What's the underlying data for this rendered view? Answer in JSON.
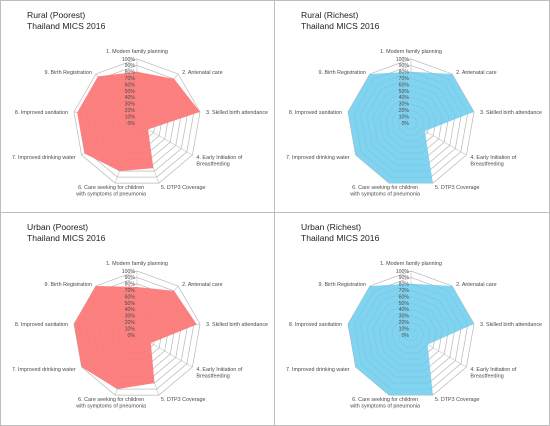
{
  "chart_data": [
    {
      "type": "radar",
      "title": "Rural (Poorest)",
      "subtitle": "Thailand MICS 2016",
      "categories": [
        "1. Modern family planning",
        "2. Antenatal care",
        "3. Skilled birth attendance",
        "4. Early Initiation of Breastfeeding",
        "5. DTP3 Coverage",
        "6. Care seeking for children with symptoms of pneumonia",
        "7. Improved drinking water",
        "8. Improved sanitation",
        "9. Birth Registration"
      ],
      "values": [
        80,
        90,
        100,
        20,
        75,
        80,
        95,
        95,
        95
      ],
      "ticks": [
        "0%",
        "10%",
        "20%",
        "30%",
        "40%",
        "50%",
        "60%",
        "70%",
        "80%",
        "90%",
        "100%"
      ],
      "rlim": [
        0,
        100
      ],
      "color": "#ff7f7f"
    },
    {
      "type": "radar",
      "title": "Rural (Richest)",
      "subtitle": "Thailand MICS 2016",
      "categories": [
        "1. Modern family planning",
        "2. Antenatal care",
        "3. Skilled birth attendance",
        "4. Early Initiation of Breastfeeding",
        "5. DTP3 Coverage",
        "6. Care seeking for children with symptoms of pneumonia",
        "7. Improved drinking water",
        "8. Improved sanitation",
        "9. Birth Registration"
      ],
      "values": [
        80,
        100,
        100,
        25,
        100,
        100,
        100,
        100,
        100
      ],
      "ticks": [
        "0%",
        "10%",
        "20%",
        "30%",
        "40%",
        "50%",
        "60%",
        "70%",
        "80%",
        "90%",
        "100%"
      ],
      "rlim": [
        0,
        100
      ],
      "color": "#7fd4f2"
    },
    {
      "type": "radar",
      "title": "Urban (Poorest)",
      "subtitle": "Thailand MICS 2016",
      "categories": [
        "1. Modern family planning",
        "2. Antenatal care",
        "3. Skilled birth attendance",
        "4. Early Initiation of Breastfeeding",
        "5. DTP3 Coverage",
        "6. Care seeking for children with symptoms of pneumonia",
        "7. Improved drinking water",
        "8. Improved sanitation",
        "9. Birth Registration"
      ],
      "values": [
        75,
        90,
        95,
        25,
        80,
        90,
        100,
        100,
        100
      ],
      "ticks": [
        "0%",
        "10%",
        "20%",
        "30%",
        "40%",
        "50%",
        "60%",
        "70%",
        "80%",
        "90%",
        "100%"
      ],
      "rlim": [
        0,
        100
      ],
      "color": "#ff7f7f"
    },
    {
      "type": "radar",
      "title": "Urban (Richest)",
      "subtitle": "Thailand MICS 2016",
      "categories": [
        "1. Modern family planning",
        "2. Antenatal care",
        "3. Skilled birth attendance",
        "4. Early Initiation of Breastfeeding",
        "5. DTP3 Coverage",
        "6. Care seeking for children with symptoms of pneumonia",
        "7. Improved drinking water",
        "8. Improved sanitation",
        "9. Birth Registration"
      ],
      "values": [
        80,
        100,
        100,
        30,
        100,
        100,
        100,
        100,
        100
      ],
      "ticks": [
        "0%",
        "10%",
        "20%",
        "30%",
        "40%",
        "50%",
        "60%",
        "70%",
        "80%",
        "90%",
        "100%"
      ],
      "rlim": [
        0,
        100
      ],
      "color": "#7fd4f2"
    }
  ]
}
